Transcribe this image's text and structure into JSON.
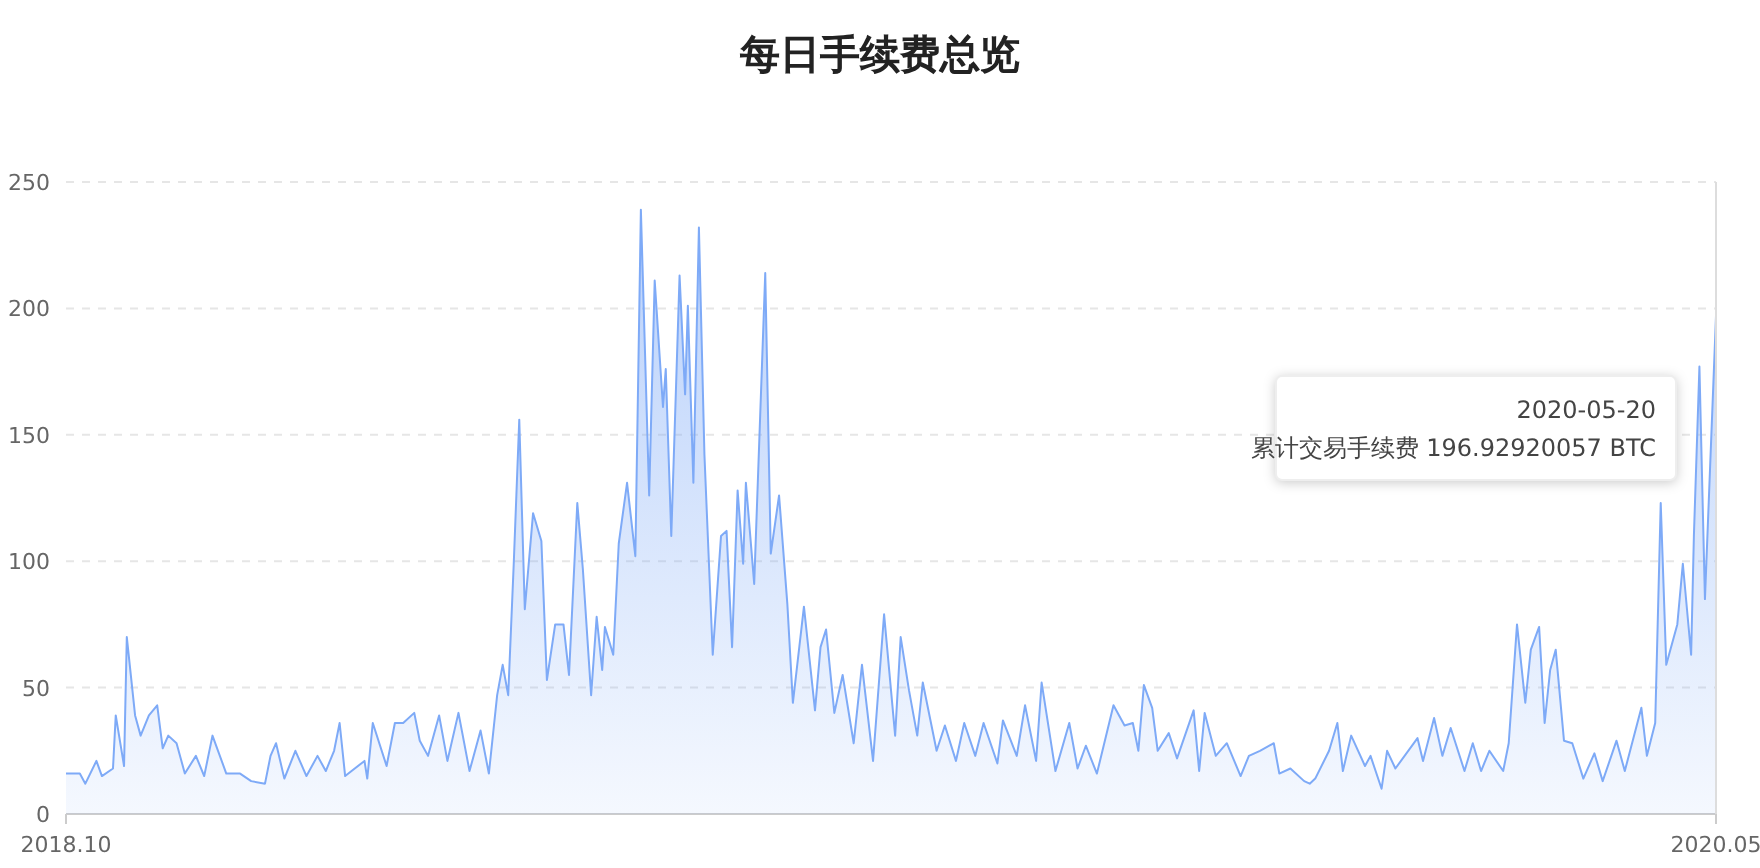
{
  "chart_data": {
    "type": "area",
    "title": "每日手续费总览",
    "x": [
      "2018-10-01",
      "2018-10-06",
      "2018-10-08",
      "2018-10-12",
      "2018-10-14",
      "2018-10-18",
      "2018-10-19",
      "2018-10-22",
      "2018-10-23",
      "2018-10-26",
      "2018-10-28",
      "2018-10-31",
      "2018-11-03",
      "2018-11-05",
      "2018-11-07",
      "2018-11-10",
      "2018-11-13",
      "2018-11-17",
      "2018-11-20",
      "2018-11-23",
      "2018-11-28",
      "2018-12-03",
      "2018-12-07",
      "2018-12-12",
      "2018-12-14",
      "2018-12-16",
      "2018-12-19",
      "2018-12-23",
      "2018-12-27",
      "2018-12-31",
      "2019-01-03",
      "2019-01-06",
      "2019-01-08",
      "2019-01-10",
      "2019-01-17",
      "2019-01-18",
      "2019-01-20",
      "2019-01-25",
      "2019-01-28",
      "2019-01-31",
      "2019-02-04",
      "2019-02-06",
      "2019-02-09",
      "2019-02-13",
      "2019-02-16",
      "2019-02-20",
      "2019-02-24",
      "2019-02-28",
      "2019-03-03",
      "2019-03-06",
      "2019-03-08",
      "2019-03-10",
      "2019-03-12",
      "2019-03-14",
      "2019-03-16",
      "2019-03-19",
      "2019-03-22",
      "2019-03-24",
      "2019-03-27",
      "2019-03-30",
      "2019-04-01",
      "2019-04-04",
      "2019-04-06",
      "2019-04-09",
      "2019-04-11",
      "2019-04-13",
      "2019-04-14",
      "2019-04-17",
      "2019-04-19",
      "2019-04-22",
      "2019-04-25",
      "2019-04-27",
      "2019-04-30",
      "2019-05-02",
      "2019-05-05",
      "2019-05-06",
      "2019-05-08",
      "2019-05-11",
      "2019-05-13",
      "2019-05-14",
      "2019-05-16",
      "2019-05-18",
      "2019-05-20",
      "2019-05-23",
      "2019-05-26",
      "2019-05-28",
      "2019-05-30",
      "2019-06-01",
      "2019-06-03",
      "2019-06-04",
      "2019-06-07",
      "2019-06-11",
      "2019-06-13",
      "2019-06-16",
      "2019-06-19",
      "2019-06-21",
      "2019-06-25",
      "2019-06-29",
      "2019-07-01",
      "2019-07-03",
      "2019-07-06",
      "2019-07-09",
      "2019-07-13",
      "2019-07-16",
      "2019-07-20",
      "2019-07-24",
      "2019-07-28",
      "2019-07-30",
      "2019-08-02",
      "2019-08-05",
      "2019-08-07",
      "2019-08-12",
      "2019-08-15",
      "2019-08-19",
      "2019-08-22",
      "2019-08-26",
      "2019-08-29",
      "2019-09-03",
      "2019-09-05",
      "2019-09-10",
      "2019-09-13",
      "2019-09-17",
      "2019-09-19",
      "2019-09-24",
      "2019-09-29",
      "2019-10-02",
      "2019-10-05",
      "2019-10-09",
      "2019-10-15",
      "2019-10-19",
      "2019-10-22",
      "2019-10-24",
      "2019-10-26",
      "2019-10-29",
      "2019-10-31",
      "2019-11-04",
      "2019-11-07",
      "2019-11-13",
      "2019-11-15",
      "2019-11-17",
      "2019-11-21",
      "2019-11-25",
      "2019-11-30",
      "2019-12-03",
      "2019-12-07",
      "2019-12-12",
      "2019-12-14",
      "2019-12-18",
      "2019-12-23",
      "2019-12-25",
      "2019-12-27",
      "2020-01-01",
      "2020-01-04",
      "2020-01-06",
      "2020-01-09",
      "2020-01-14",
      "2020-01-16",
      "2020-01-20",
      "2020-01-22",
      "2020-01-25",
      "2020-02-02",
      "2020-02-04",
      "2020-02-08",
      "2020-02-11",
      "2020-02-14",
      "2020-02-19",
      "2020-02-22",
      "2020-02-25",
      "2020-02-28",
      "2020-03-04",
      "2020-03-06",
      "2020-03-09",
      "2020-03-12",
      "2020-03-14",
      "2020-03-17",
      "2020-03-19",
      "2020-03-21",
      "2020-03-23",
      "2020-03-26",
      "2020-03-29",
      "2020-04-02",
      "2020-04-06",
      "2020-04-09",
      "2020-04-14",
      "2020-04-17",
      "2020-04-23",
      "2020-04-25",
      "2020-04-28",
      "2020-04-30",
      "2020-05-02",
      "2020-05-06",
      "2020-05-08",
      "2020-05-11",
      "2020-05-12",
      "2020-05-14",
      "2020-05-16",
      "2020-05-20"
    ],
    "series": [
      {
        "color": "#7eaaf7",
        "values": [
          16,
          16,
          12,
          21,
          15,
          18,
          39,
          19,
          70,
          39,
          31,
          39,
          43,
          26,
          31,
          28,
          16,
          23,
          15,
          31,
          16,
          16,
          13,
          12,
          23,
          28,
          14,
          25,
          15,
          23,
          17,
          25,
          36,
          15,
          21,
          14,
          36,
          19,
          36,
          36,
          40,
          29,
          23,
          39,
          21,
          40,
          17,
          33,
          16,
          47,
          59,
          47,
          99,
          156,
          81,
          119,
          108,
          53,
          75,
          75,
          55,
          123,
          97,
          47,
          78,
          57,
          74,
          63,
          107,
          131,
          102,
          239,
          126,
          211,
          161,
          176,
          110,
          213,
          166,
          201,
          131,
          232,
          142,
          63,
          110,
          112,
          66,
          128,
          99,
          131,
          91,
          214,
          103,
          126,
          83,
          44,
          82,
          41,
          66,
          73,
          40,
          55,
          28,
          59,
          21,
          79,
          31,
          70,
          49,
          31,
          52,
          25,
          35,
          21,
          36,
          23,
          36,
          20,
          37,
          23,
          43,
          21,
          52,
          17,
          36,
          18,
          27,
          16,
          43,
          35,
          36,
          25,
          51,
          42,
          25,
          32,
          22,
          41,
          17,
          40,
          23,
          28,
          15,
          23,
          25,
          28,
          16,
          18,
          13,
          12,
          14,
          25,
          36,
          17,
          31,
          19,
          23,
          10,
          25,
          18,
          30,
          21,
          38,
          23,
          34,
          17,
          28,
          17,
          25,
          17,
          28,
          75,
          44,
          65,
          74,
          36,
          57,
          65,
          29,
          28,
          14,
          24,
          13,
          29,
          17,
          42,
          23,
          36,
          123,
          59,
          75,
          99,
          63,
          110,
          177,
          85,
          197
        ]
      }
    ],
    "xlim": [
      "2018-10-01",
      "2020-05-20"
    ],
    "xticks": [
      {
        "value": "2018-10-01",
        "label": "2018.10"
      },
      {
        "value": "2020-05-20",
        "label": "2020.05"
      }
    ],
    "ylim": [
      0,
      250
    ],
    "yticks": [
      0,
      50,
      100,
      150,
      200,
      250
    ],
    "grid": "y",
    "marker": "none",
    "line_style": "solid",
    "annotations": [
      "2020-05-20\n累计交易手续费 196.92920057 BTC"
    ]
  }
}
